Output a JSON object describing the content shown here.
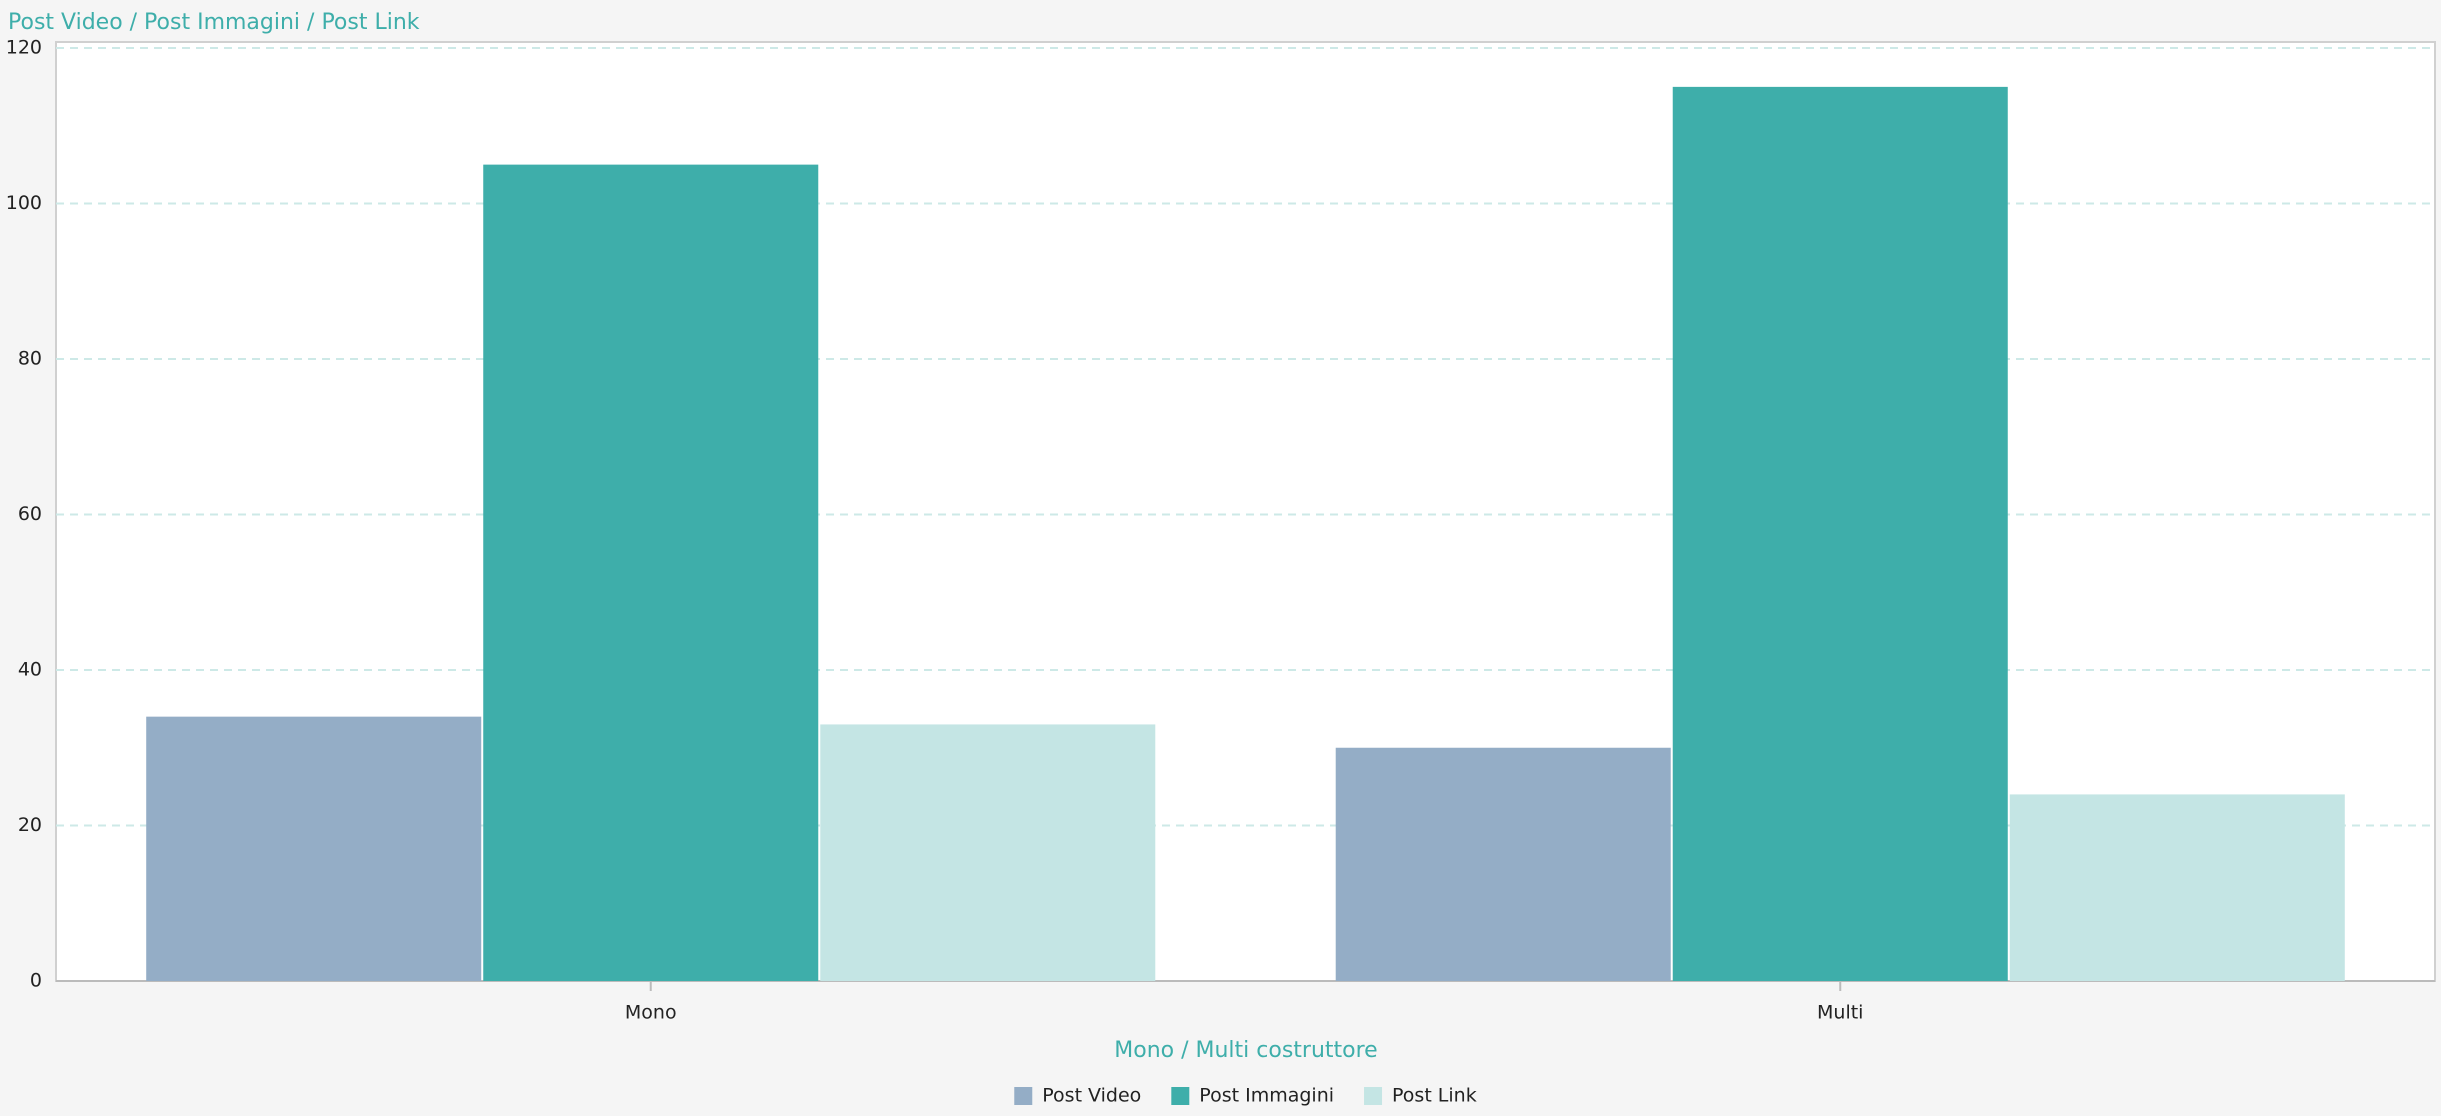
{
  "chart_data": {
    "type": "bar",
    "title": "Post Video / Post Immagini / Post Link",
    "x_label": "Mono / Multi costruttore",
    "categories": [
      "Mono",
      "Multi"
    ],
    "series": [
      {
        "name": "Post Video",
        "color": "#94adc6",
        "values": [
          34,
          30
        ]
      },
      {
        "name": "Post Immagini",
        "color": "#3eaeaa",
        "values": [
          105,
          115
        ]
      },
      {
        "name": "Post Link",
        "color": "#c4e5e4",
        "values": [
          33,
          24
        ]
      }
    ],
    "ylim": [
      0,
      120
    ],
    "yticks": [
      0,
      20,
      40,
      60,
      80,
      100,
      120
    ],
    "grid": true,
    "legend": "bottom"
  }
}
